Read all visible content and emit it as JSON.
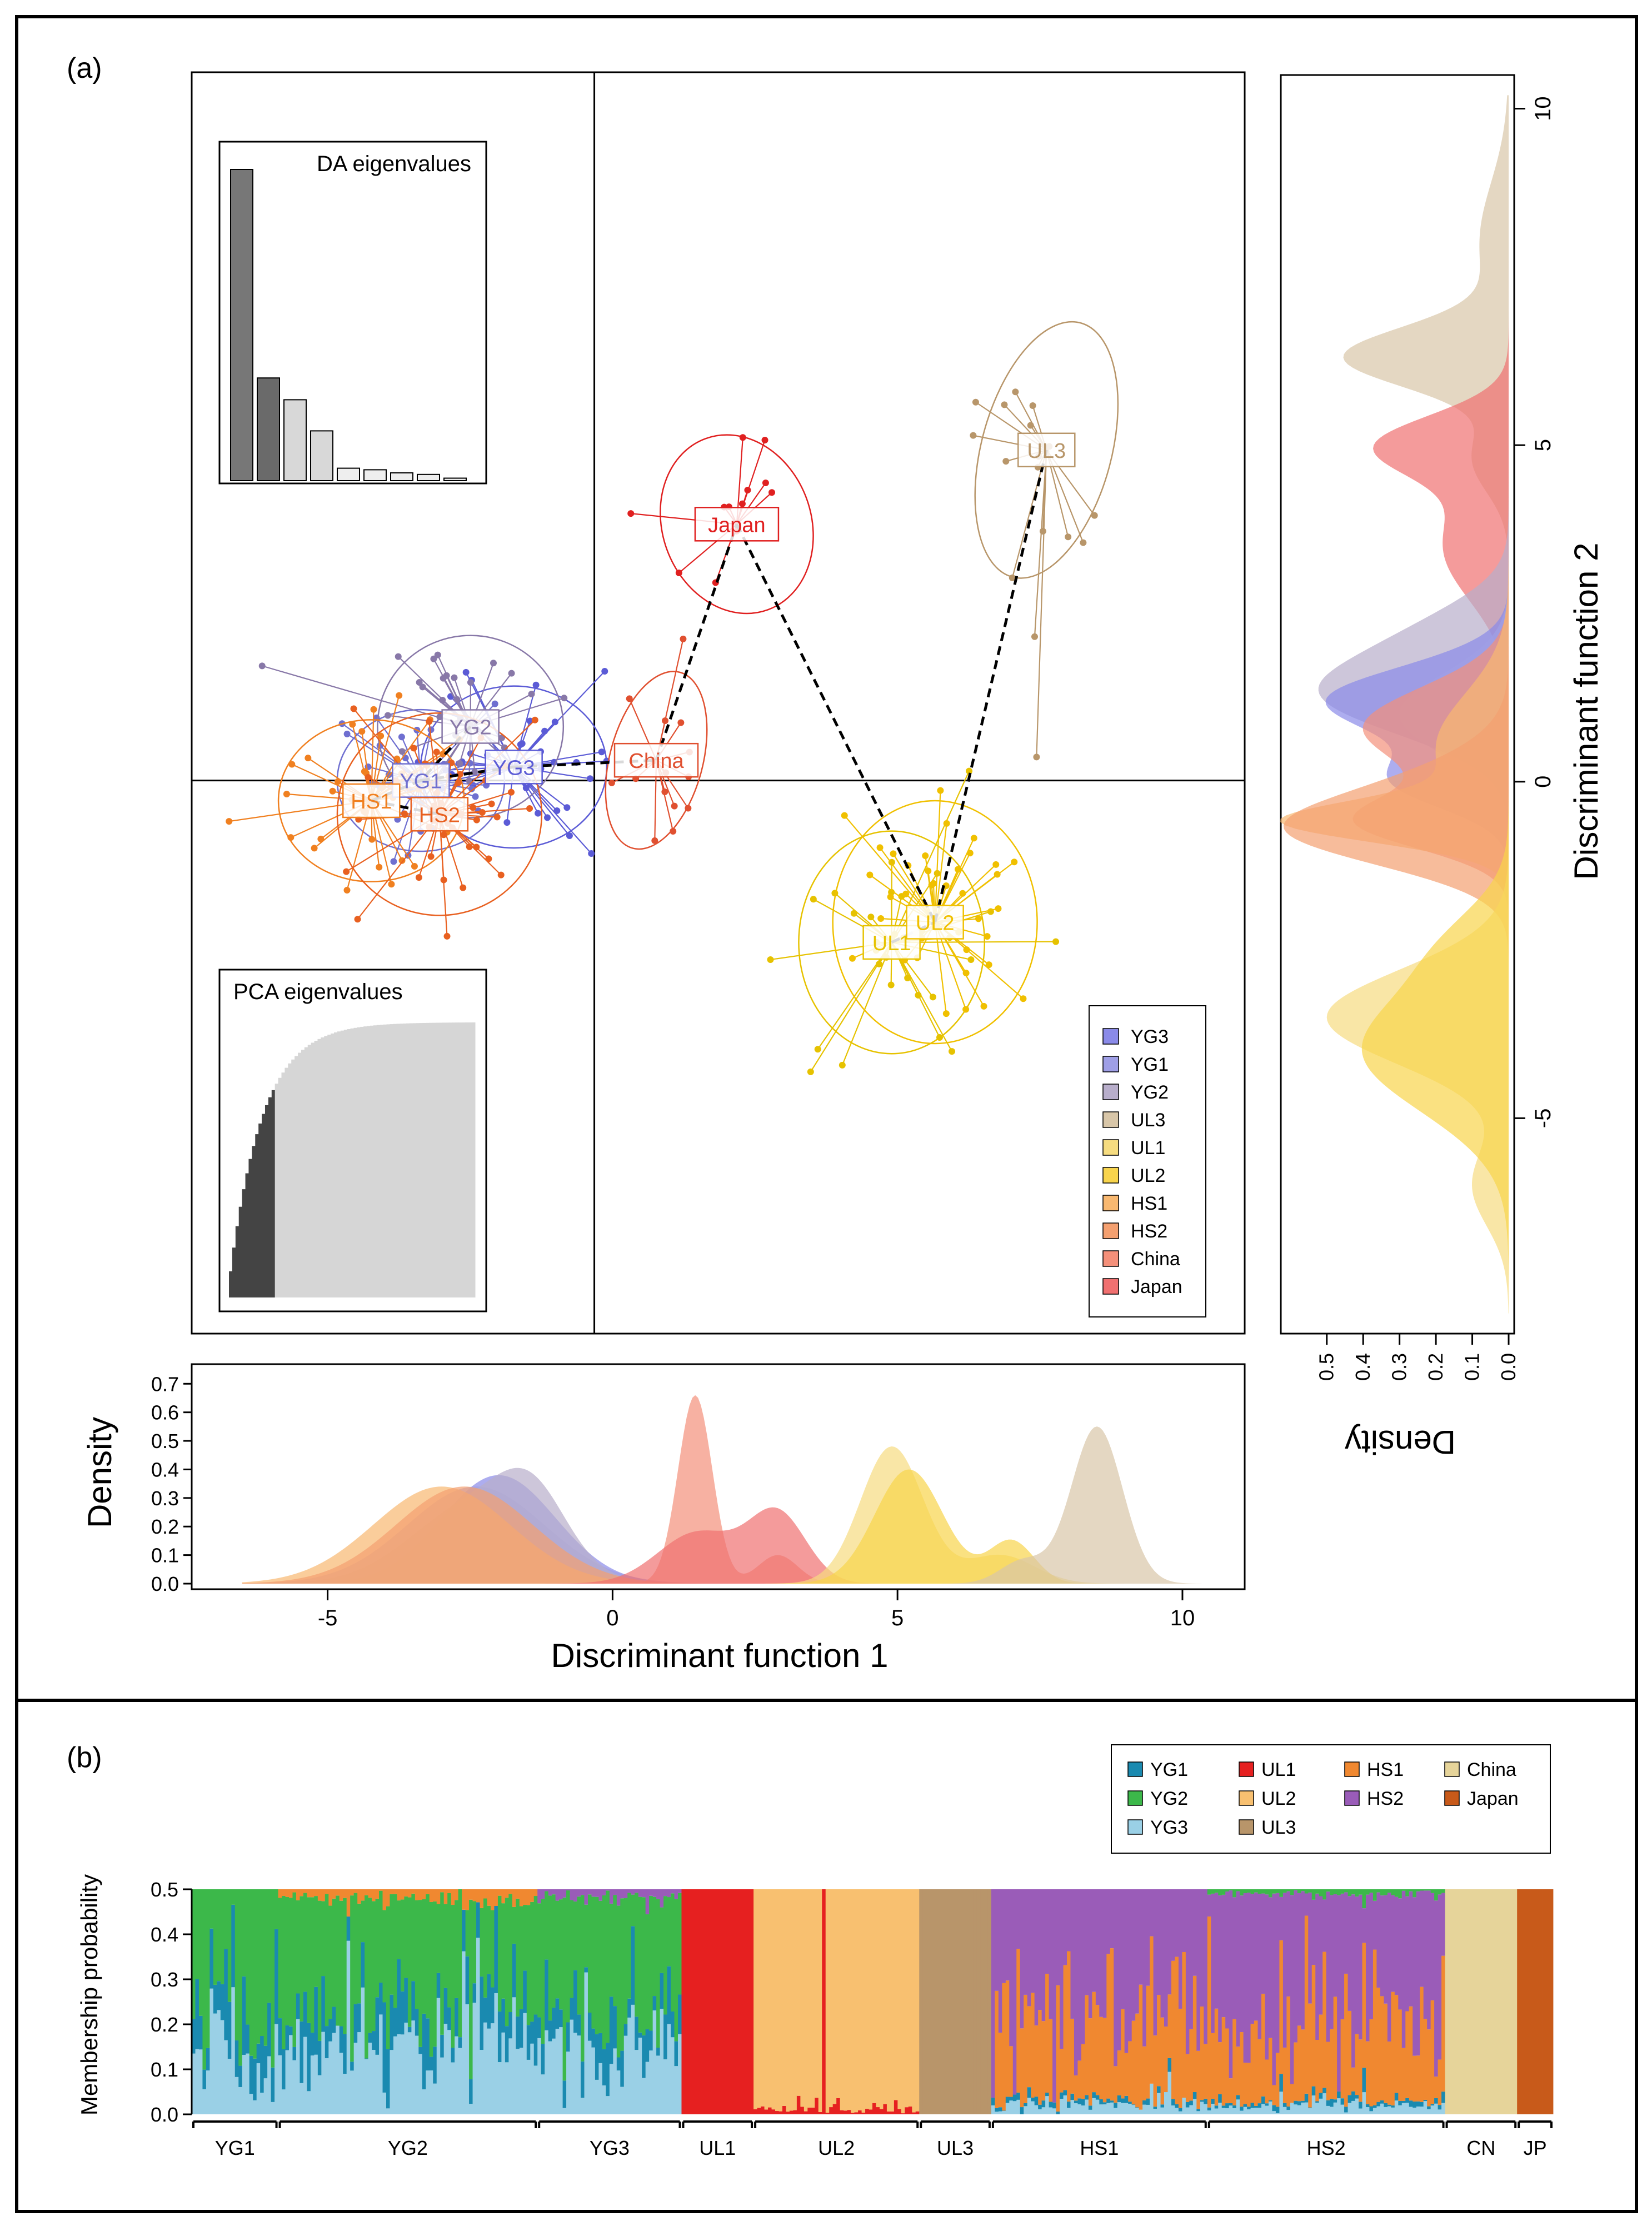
{
  "panel_a": {
    "label": "(a)",
    "dapc": {
      "groups": [
        {
          "name": "YG3",
          "color": "#5b5bd6",
          "fill": "#8a8ae8",
          "center": [
            -1.3,
            0.2
          ]
        },
        {
          "name": "YG1",
          "color": "#6f6fd0",
          "fill": "#9f9fe6",
          "center": [
            -2.8,
            0.0
          ]
        },
        {
          "name": "YG2",
          "color": "#8878a8",
          "fill": "#b8aecb",
          "center": [
            -2.0,
            0.8
          ]
        },
        {
          "name": "UL3",
          "color": "#b8966a",
          "fill": "#d8c6a8",
          "center": [
            7.3,
            4.9
          ]
        },
        {
          "name": "UL1",
          "color": "#e6c200",
          "fill": "#f6dc80",
          "center": [
            4.8,
            -2.4
          ]
        },
        {
          "name": "UL2",
          "color": "#f0c000",
          "fill": "#f8d44c",
          "center": [
            5.5,
            -2.1
          ]
        },
        {
          "name": "HS1",
          "color": "#f08020",
          "fill": "#f8b870",
          "center": [
            -3.6,
            -0.3
          ]
        },
        {
          "name": "HS2",
          "color": "#e86020",
          "fill": "#f4a070",
          "center": [
            -2.5,
            -0.5
          ]
        },
        {
          "name": "China",
          "color": "#e05030",
          "fill": "#f4907a",
          "center": [
            1.0,
            0.3
          ]
        },
        {
          "name": "Japan",
          "color": "#e02020",
          "fill": "#f07070",
          "center": [
            2.3,
            3.8
          ]
        }
      ],
      "mst_edges": [
        [
          "YG2",
          "YG1"
        ],
        [
          "YG1",
          "YG3"
        ],
        [
          "YG1",
          "HS1"
        ],
        [
          "HS1",
          "HS2"
        ],
        [
          "YG3",
          "China"
        ],
        [
          "China",
          "Japan"
        ],
        [
          "Japan",
          "UL2"
        ],
        [
          "UL1",
          "UL2"
        ],
        [
          "UL2",
          "UL3"
        ]
      ],
      "xlim": [
        -6.5,
        10.5
      ],
      "ylim": [
        -8.2,
        10.5
      ],
      "legend_position": "bottom-right"
    },
    "da_inset": {
      "title": "DA eigenvalues",
      "values": [
        100,
        33,
        26,
        16,
        4,
        3.5,
        2.5,
        2,
        0.8
      ]
    },
    "pca_inset": {
      "title": "PCA eigenvalues",
      "retained": 14,
      "total": 75
    },
    "density_x": {
      "xlabel": "Discriminant function 1",
      "ylabel": "Density",
      "xticks": [
        "-5",
        "0",
        "5",
        "10"
      ],
      "xtick_values": [
        -5,
        0,
        5,
        10
      ],
      "yticks": [
        "0.0",
        "0.1",
        "0.2",
        "0.3",
        "0.4",
        "0.5",
        "0.6",
        "0.7"
      ],
      "ytick_values": [
        0,
        0.1,
        0.2,
        0.3,
        0.4,
        0.5,
        0.6,
        0.7
      ],
      "xlim": [
        -6.8,
        10.8
      ],
      "ylim": [
        0,
        0.72
      ],
      "curves": [
        {
          "group": "YG3",
          "components": [
            [
              -2.0,
              1.0,
              0.38
            ]
          ]
        },
        {
          "group": "YG1",
          "components": [
            [
              -2.4,
              1.2,
              0.34
            ]
          ]
        },
        {
          "group": "YG2",
          "components": [
            [
              -2.4,
              1.1,
              0.28
            ],
            [
              -1.4,
              0.6,
              0.2
            ]
          ]
        },
        {
          "group": "HS1",
          "components": [
            [
              -3.0,
              1.2,
              0.34
            ]
          ]
        },
        {
          "group": "HS2",
          "components": [
            [
              -2.6,
              1.2,
              0.34
            ]
          ]
        },
        {
          "group": "China",
          "components": [
            [
              1.45,
              0.3,
              0.66
            ],
            [
              2.9,
              0.35,
              0.1
            ]
          ]
        },
        {
          "group": "Japan",
          "components": [
            [
              1.5,
              0.7,
              0.18
            ],
            [
              2.9,
              0.5,
              0.24
            ]
          ]
        },
        {
          "group": "UL1",
          "components": [
            [
              4.9,
              0.55,
              0.48
            ],
            [
              6.8,
              0.6,
              0.1
            ]
          ]
        },
        {
          "group": "UL2",
          "components": [
            [
              5.2,
              0.6,
              0.4
            ],
            [
              7.0,
              0.4,
              0.15
            ]
          ]
        },
        {
          "group": "UL3",
          "components": [
            [
              8.5,
              0.45,
              0.55
            ],
            [
              7.2,
              0.4,
              0.08
            ]
          ]
        }
      ]
    },
    "density_y": {
      "xlabel": "Density",
      "ylabel": "Discriminant function 2",
      "yticks": [
        "-5",
        "0",
        "5",
        "10"
      ],
      "ytick_values": [
        -5,
        0,
        5,
        10
      ],
      "xticks": [
        "0.5",
        "0.4",
        "0.3",
        "0.2",
        "0.1",
        "0.0"
      ],
      "xtick_values": [
        0.5,
        0.4,
        0.3,
        0.2,
        0.1,
        0
      ],
      "ylim": [
        -8.2,
        10.5
      ],
      "xlim": [
        0,
        0.55
      ],
      "curves": [
        {
          "group": "UL3",
          "components": [
            [
              6.3,
              0.45,
              0.44
            ],
            [
              8.0,
              0.9,
              0.08
            ],
            [
              4.8,
              0.5,
              0.1
            ]
          ]
        },
        {
          "group": "Japan",
          "components": [
            [
              5.0,
              0.45,
              0.34
            ],
            [
              3.5,
              0.8,
              0.18
            ]
          ]
        },
        {
          "group": "YG2",
          "components": [
            [
              1.3,
              0.6,
              0.5
            ],
            [
              2.3,
              0.5,
              0.15
            ]
          ]
        },
        {
          "group": "YG3",
          "components": [
            [
              1.2,
              0.5,
              0.5
            ],
            [
              0.0,
              0.4,
              0.3
            ]
          ]
        },
        {
          "group": "YG1",
          "components": [
            [
              1.0,
              0.6,
              0.3
            ]
          ]
        },
        {
          "group": "China",
          "components": [
            [
              0.8,
              0.6,
              0.4
            ],
            [
              -0.6,
              0.4,
              0.4
            ]
          ]
        },
        {
          "group": "HS1",
          "components": [
            [
              -0.6,
              0.3,
              0.55
            ],
            [
              0.5,
              0.8,
              0.2
            ]
          ]
        },
        {
          "group": "HS2",
          "components": [
            [
              -0.8,
              0.5,
              0.45
            ],
            [
              -0.2,
              0.6,
              0.25
            ]
          ]
        },
        {
          "group": "UL1",
          "components": [
            [
              -3.5,
              0.7,
              0.5
            ],
            [
              -6.0,
              0.6,
              0.1
            ]
          ]
        },
        {
          "group": "UL2",
          "components": [
            [
              -4.0,
              0.9,
              0.4
            ],
            [
              -2.4,
              0.6,
              0.12
            ]
          ]
        }
      ]
    }
  },
  "panel_b": {
    "label": "(b)",
    "ylabel": "Membership probability",
    "yticks": [
      "0.0",
      "0.1",
      "0.2",
      "0.3",
      "0.4",
      "0.5"
    ],
    "ytick_values": [
      0,
      0.1,
      0.2,
      0.3,
      0.4,
      0.5
    ],
    "ylim": [
      0,
      0.5
    ],
    "clusters": [
      {
        "name": "YG1",
        "color": "#1a8ab0"
      },
      {
        "name": "YG2",
        "color": "#3cb84a"
      },
      {
        "name": "YG3",
        "color": "#9ad0e6"
      },
      {
        "name": "UL1",
        "color": "#e62020"
      },
      {
        "name": "UL2",
        "color": "#f8c070"
      },
      {
        "name": "UL3",
        "color": "#b8956a"
      },
      {
        "name": "HS1",
        "color": "#f08830"
      },
      {
        "name": "HS2",
        "color": "#9a5cb8"
      },
      {
        "name": "China",
        "color": "#e6d49a"
      },
      {
        "name": "Japan",
        "color": "#c85a1a"
      }
    ],
    "populations": [
      {
        "label": "YG1",
        "n": 24,
        "profile": [
          [
            "YG3",
            0.14
          ],
          [
            "YG1",
            0.08
          ],
          [
            "YG2",
            0.28
          ]
        ]
      },
      {
        "label": "YG2",
        "n": 72,
        "profile": [
          [
            "YG3",
            0.15
          ],
          [
            "YG1",
            0.08
          ],
          [
            "YG2",
            0.25
          ],
          [
            "HS1",
            0.02
          ]
        ]
      },
      {
        "label": "YG3",
        "n": 40,
        "profile": [
          [
            "YG3",
            0.14
          ],
          [
            "YG1",
            0.07
          ],
          [
            "YG2",
            0.27
          ],
          [
            "HS2",
            0.02
          ]
        ]
      },
      {
        "label": "UL1",
        "n": 20,
        "profile": [
          [
            "UL1",
            0.5
          ]
        ]
      },
      {
        "label": "UL2",
        "n": 46,
        "profile": [
          [
            "UL1",
            0.01
          ],
          [
            "UL2",
            0.49
          ]
        ]
      },
      {
        "label": "UL3",
        "n": 20,
        "profile": [
          [
            "UL3",
            0.5
          ]
        ]
      },
      {
        "label": "HS1",
        "n": 60,
        "profile": [
          [
            "YG3",
            0.02
          ],
          [
            "YG1",
            0.01
          ],
          [
            "HS1",
            0.2
          ],
          [
            "HS2",
            0.27
          ]
        ]
      },
      {
        "label": "HS2",
        "n": 66,
        "profile": [
          [
            "YG3",
            0.02
          ],
          [
            "YG1",
            0.01
          ],
          [
            "HS1",
            0.16
          ],
          [
            "HS2",
            0.3
          ],
          [
            "YG2",
            0.01
          ]
        ]
      },
      {
        "label": "CN",
        "n": 20,
        "profile": [
          [
            "China",
            0.5
          ]
        ]
      },
      {
        "label": "JP",
        "n": 10,
        "profile": [
          [
            "Japan",
            0.5
          ]
        ]
      }
    ]
  },
  "chart_data": [
    {
      "type": "scatter",
      "title": "",
      "xlabel": "",
      "ylabel": "",
      "series_note_groups": [
        "YG3",
        "YG1",
        "YG2",
        "UL3",
        "UL1",
        "UL2",
        "HS1",
        "HS2",
        "China",
        "Japan"
      ],
      "centroids": {
        "YG3": [
          -1.3,
          0.2
        ],
        "YG1": [
          -2.8,
          0.0
        ],
        "YG2": [
          -2.0,
          0.8
        ],
        "UL3": [
          7.3,
          4.9
        ],
        "UL1": [
          4.8,
          -2.4
        ],
        "UL2": [
          5.5,
          -2.1
        ],
        "HS1": [
          -3.6,
          -0.3
        ],
        "HS2": [
          -2.5,
          -0.5
        ],
        "China": [
          1.0,
          0.3
        ],
        "Japan": [
          2.3,
          3.8
        ]
      }
    },
    {
      "type": "bar",
      "title": "DA eigenvalues",
      "values": [
        100,
        33,
        26,
        16,
        4,
        3.5,
        2.5,
        2,
        0.8
      ]
    },
    {
      "type": "area",
      "title": "PCA eigenvalues"
    },
    {
      "type": "area",
      "xlabel": "Discriminant function 1",
      "ylabel": "Density",
      "ylim": [
        0,
        0.72
      ]
    },
    {
      "type": "area",
      "xlabel": "Density",
      "ylabel": "Discriminant function 2",
      "xlim": [
        0,
        0.55
      ]
    },
    {
      "type": "bar",
      "ylabel": "Membership probability",
      "ylim": [
        0,
        0.5
      ],
      "stacked": true
    }
  ]
}
